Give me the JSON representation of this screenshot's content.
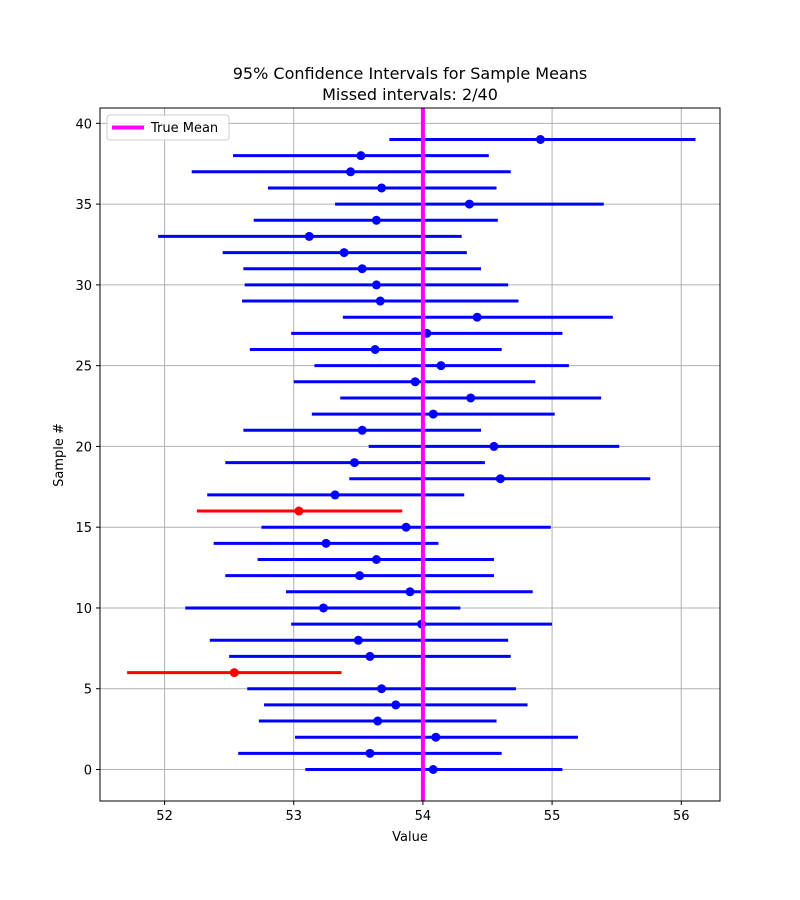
{
  "chart_data": {
    "type": "errorbar",
    "title": "95% Confidence Intervals for Sample Means",
    "subtitle": "Missed intervals: 2/40",
    "xlabel": "Value",
    "ylabel": "Sample #",
    "xlim": [
      51.5,
      56.3
    ],
    "ylim": [
      -1.95,
      40.95
    ],
    "xticks": [
      52,
      53,
      54,
      55,
      56
    ],
    "yticks": [
      0,
      5,
      10,
      15,
      20,
      25,
      30,
      35,
      40
    ],
    "grid": true,
    "legend_position": "top-left",
    "true_mean": {
      "name": "True Mean",
      "value": 54.0,
      "color": "#ff00ff"
    },
    "colors": {
      "covered": "#0000ff",
      "missed": "#ff0000"
    },
    "intervals": [
      {
        "sample": 0,
        "mean": 54.08,
        "lower": 53.09,
        "upper": 55.08,
        "missed": false
      },
      {
        "sample": 1,
        "mean": 53.59,
        "lower": 52.57,
        "upper": 54.61,
        "missed": false
      },
      {
        "sample": 2,
        "mean": 54.1,
        "lower": 53.01,
        "upper": 55.2,
        "missed": false
      },
      {
        "sample": 3,
        "mean": 53.65,
        "lower": 52.73,
        "upper": 54.57,
        "missed": false
      },
      {
        "sample": 4,
        "mean": 53.79,
        "lower": 52.77,
        "upper": 54.81,
        "missed": false
      },
      {
        "sample": 5,
        "mean": 53.68,
        "lower": 52.64,
        "upper": 54.72,
        "missed": false
      },
      {
        "sample": 6,
        "mean": 52.54,
        "lower": 51.71,
        "upper": 53.37,
        "missed": true
      },
      {
        "sample": 7,
        "mean": 53.59,
        "lower": 52.5,
        "upper": 54.68,
        "missed": false
      },
      {
        "sample": 8,
        "mean": 53.5,
        "lower": 52.35,
        "upper": 54.66,
        "missed": false
      },
      {
        "sample": 9,
        "mean": 53.99,
        "lower": 52.98,
        "upper": 55.0,
        "missed": false
      },
      {
        "sample": 10,
        "mean": 53.23,
        "lower": 52.16,
        "upper": 54.29,
        "missed": false
      },
      {
        "sample": 11,
        "mean": 53.9,
        "lower": 52.94,
        "upper": 54.85,
        "missed": false
      },
      {
        "sample": 12,
        "mean": 53.51,
        "lower": 52.47,
        "upper": 54.55,
        "missed": false
      },
      {
        "sample": 13,
        "mean": 53.64,
        "lower": 52.72,
        "upper": 54.55,
        "missed": false
      },
      {
        "sample": 14,
        "mean": 53.25,
        "lower": 52.38,
        "upper": 54.12,
        "missed": false
      },
      {
        "sample": 15,
        "mean": 53.87,
        "lower": 52.75,
        "upper": 54.99,
        "missed": false
      },
      {
        "sample": 16,
        "mean": 53.04,
        "lower": 52.25,
        "upper": 53.84,
        "missed": true
      },
      {
        "sample": 17,
        "mean": 53.32,
        "lower": 52.33,
        "upper": 54.32,
        "missed": false
      },
      {
        "sample": 18,
        "mean": 54.6,
        "lower": 53.43,
        "upper": 55.76,
        "missed": false
      },
      {
        "sample": 19,
        "mean": 53.47,
        "lower": 52.47,
        "upper": 54.48,
        "missed": false
      },
      {
        "sample": 20,
        "mean": 54.55,
        "lower": 53.58,
        "upper": 55.52,
        "missed": false
      },
      {
        "sample": 21,
        "mean": 53.53,
        "lower": 52.61,
        "upper": 54.45,
        "missed": false
      },
      {
        "sample": 22,
        "mean": 54.08,
        "lower": 53.14,
        "upper": 55.02,
        "missed": false
      },
      {
        "sample": 23,
        "mean": 54.37,
        "lower": 53.36,
        "upper": 55.38,
        "missed": false
      },
      {
        "sample": 24,
        "mean": 53.94,
        "lower": 53.0,
        "upper": 54.87,
        "missed": false
      },
      {
        "sample": 25,
        "mean": 54.14,
        "lower": 53.16,
        "upper": 55.13,
        "missed": false
      },
      {
        "sample": 26,
        "mean": 53.63,
        "lower": 52.66,
        "upper": 54.61,
        "missed": false
      },
      {
        "sample": 27,
        "mean": 54.03,
        "lower": 52.98,
        "upper": 55.08,
        "missed": false
      },
      {
        "sample": 28,
        "mean": 54.42,
        "lower": 53.38,
        "upper": 55.47,
        "missed": false
      },
      {
        "sample": 29,
        "mean": 53.67,
        "lower": 52.6,
        "upper": 54.74,
        "missed": false
      },
      {
        "sample": 30,
        "mean": 53.64,
        "lower": 52.62,
        "upper": 54.66,
        "missed": false
      },
      {
        "sample": 31,
        "mean": 53.53,
        "lower": 52.61,
        "upper": 54.45,
        "missed": false
      },
      {
        "sample": 32,
        "mean": 53.39,
        "lower": 52.45,
        "upper": 54.34,
        "missed": false
      },
      {
        "sample": 33,
        "mean": 53.12,
        "lower": 51.95,
        "upper": 54.3,
        "missed": false
      },
      {
        "sample": 34,
        "mean": 53.64,
        "lower": 52.69,
        "upper": 54.58,
        "missed": false
      },
      {
        "sample": 35,
        "mean": 54.36,
        "lower": 53.32,
        "upper": 55.4,
        "missed": false
      },
      {
        "sample": 36,
        "mean": 53.68,
        "lower": 52.8,
        "upper": 54.57,
        "missed": false
      },
      {
        "sample": 37,
        "mean": 53.44,
        "lower": 52.21,
        "upper": 54.68,
        "missed": false
      },
      {
        "sample": 38,
        "mean": 53.52,
        "lower": 52.53,
        "upper": 54.51,
        "missed": false
      },
      {
        "sample": 39,
        "mean": 54.91,
        "lower": 53.74,
        "upper": 56.11,
        "missed": false
      }
    ]
  }
}
